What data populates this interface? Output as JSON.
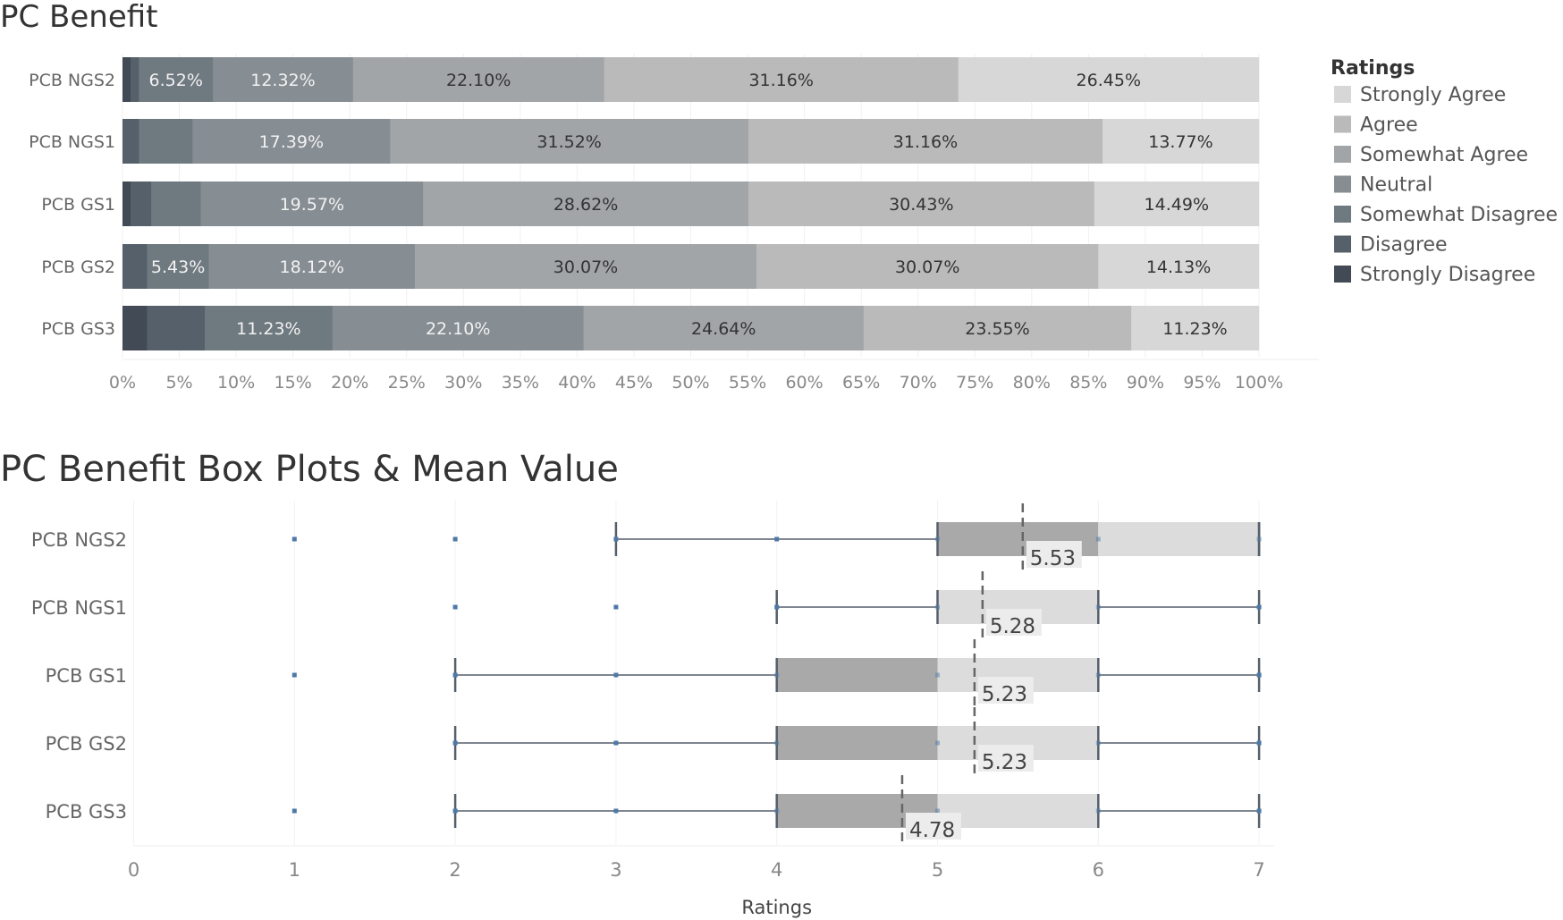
{
  "chart_data": [
    {
      "type": "bar",
      "stacked": "100%",
      "orientation": "horizontal",
      "title": "PC Benefit",
      "categories": [
        "PCB NGS2",
        "PCB NGS1",
        "PCB GS1",
        "PCB GS2",
        "PCB GS3"
      ],
      "x_ticks": [
        "0%",
        "5%",
        "10%",
        "15%",
        "20%",
        "25%",
        "30%",
        "35%",
        "40%",
        "45%",
        "50%",
        "55%",
        "60%",
        "65%",
        "70%",
        "75%",
        "80%",
        "85%",
        "90%",
        "95%",
        "100%"
      ],
      "xlim": [
        0,
        100
      ],
      "legend": {
        "title": "Ratings",
        "placement": "right"
      },
      "series": [
        {
          "name": "Strongly Disagree",
          "color": "#414a55",
          "values": [
            0.72,
            0,
            0.72,
            0,
            2.17
          ],
          "labels": [
            "",
            "",
            "",
            "",
            ""
          ]
        },
        {
          "name": "Disagree",
          "color": "#56606b",
          "values": [
            0.72,
            1.45,
            1.81,
            2.17,
            5.07
          ],
          "labels": [
            "",
            "",
            "",
            "",
            ""
          ]
        },
        {
          "name": "Somewhat Disagree",
          "color": "#6f7980",
          "values": [
            6.52,
            4.71,
            4.35,
            5.43,
            11.23
          ],
          "labels": [
            "6.52%",
            "",
            "",
            "5.43%",
            "11.23%"
          ]
        },
        {
          "name": "Neutral",
          "color": "#868d93",
          "values": [
            12.32,
            17.39,
            19.57,
            18.12,
            22.1
          ],
          "labels": [
            "12.32%",
            "17.39%",
            "19.57%",
            "18.12%",
            "22.10%"
          ]
        },
        {
          "name": "Somewhat Agree",
          "color": "#a1a5a8",
          "values": [
            22.1,
            31.52,
            28.62,
            30.07,
            24.64
          ],
          "labels": [
            "22.10%",
            "31.52%",
            "28.62%",
            "30.07%",
            "24.64%"
          ]
        },
        {
          "name": "Agree",
          "color": "#bababa",
          "values": [
            31.16,
            31.16,
            30.43,
            30.07,
            23.55
          ],
          "labels": [
            "31.16%",
            "31.16%",
            "30.43%",
            "30.07%",
            "23.55%"
          ]
        },
        {
          "name": "Strongly Agree",
          "color": "#d7d7d7",
          "values": [
            26.45,
            13.77,
            14.49,
            14.13,
            11.23
          ],
          "labels": [
            "26.45%",
            "13.77%",
            "14.49%",
            "14.13%",
            "11.23%"
          ]
        }
      ],
      "legend_order": [
        "Strongly Agree",
        "Agree",
        "Somewhat Agree",
        "Neutral",
        "Somewhat Disagree",
        "Disagree",
        "Strongly Disagree"
      ]
    },
    {
      "type": "box",
      "title": "PC Benefit Box Plots & Mean Value",
      "xlabel": "Ratings",
      "xlim": [
        0,
        7
      ],
      "x_ticks": [
        "0",
        "1",
        "2",
        "3",
        "4",
        "5",
        "6",
        "7"
      ],
      "categories": [
        "PCB NGS2",
        "PCB NGS1",
        "PCB GS1",
        "PCB GS2",
        "PCB GS3"
      ],
      "boxes": [
        {
          "whisker_low": 3,
          "q1": 5,
          "median": 6,
          "q3": 7,
          "whisker_high": 7,
          "points": [
            1,
            2,
            3,
            4,
            5,
            6,
            7
          ],
          "mean": 5.53,
          "mean_label": "5.53"
        },
        {
          "whisker_low": 4,
          "q1": 5,
          "median": 5,
          "q3": 6,
          "whisker_high": 7,
          "points": [
            2,
            3,
            4,
            5,
            6,
            7
          ],
          "mean": 5.28,
          "mean_label": "5.28"
        },
        {
          "whisker_low": 2,
          "q1": 4,
          "median": 5,
          "q3": 6,
          "whisker_high": 7,
          "points": [
            1,
            2,
            3,
            4,
            5,
            6,
            7
          ],
          "mean": 5.23,
          "mean_label": "5.23"
        },
        {
          "whisker_low": 2,
          "q1": 4,
          "median": 5,
          "q3": 6,
          "whisker_high": 7,
          "points": [
            2,
            3,
            4,
            5,
            6,
            7
          ],
          "mean": 5.23,
          "mean_label": "5.23"
        },
        {
          "whisker_low": 2,
          "q1": 4,
          "median": 5,
          "q3": 6,
          "whisker_high": 7,
          "points": [
            1,
            2,
            3,
            4,
            5,
            6,
            7
          ],
          "mean": 4.78,
          "mean_label": "4.78"
        }
      ],
      "colors": {
        "lower_box": "#a9a9a9",
        "upper_box": "#dcdcdc",
        "whisker": "#555f6b",
        "point": "#4e79a7"
      }
    }
  ]
}
